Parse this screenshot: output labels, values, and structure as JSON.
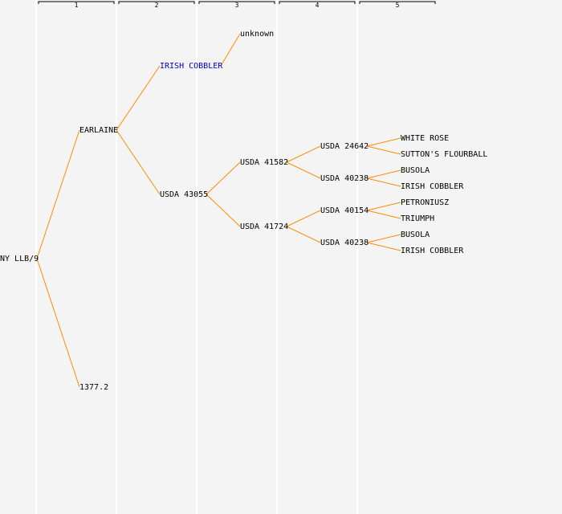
{
  "colors": {
    "background": "#f4f4f4",
    "edge": "#ff8c00",
    "text": "#000000",
    "highlight": "#0000cc"
  },
  "generations": [
    "1",
    "2",
    "3",
    "4",
    "5"
  ],
  "nodes": [
    {
      "id": "root",
      "label": "NY LLB/9",
      "gen": 0,
      "row": 0
    },
    {
      "id": "n1",
      "label": "EARLAINE",
      "gen": 1,
      "row": -8,
      "parent": "root"
    },
    {
      "id": "n2",
      "label": "1377.2",
      "gen": 1,
      "row": 8,
      "parent": "root"
    },
    {
      "id": "n3",
      "label": "IRISH COBBLER",
      "gen": 2,
      "row": -12,
      "parent": "n1",
      "highlight": true
    },
    {
      "id": "n4",
      "label": "USDA 43055",
      "gen": 2,
      "row": -4,
      "parent": "n1"
    },
    {
      "id": "n5",
      "label": "unknown",
      "gen": 3,
      "row": -14,
      "parent": "n3"
    },
    {
      "id": "n6",
      "label": "USDA 41582",
      "gen": 3,
      "row": -6,
      "parent": "n4"
    },
    {
      "id": "n7",
      "label": "USDA 41724",
      "gen": 3,
      "row": -2,
      "parent": "n4"
    },
    {
      "id": "n8",
      "label": "USDA 24642",
      "gen": 4,
      "row": -7,
      "parent": "n6"
    },
    {
      "id": "n9",
      "label": "USDA 40238",
      "gen": 4,
      "row": -5,
      "parent": "n6"
    },
    {
      "id": "n10",
      "label": "USDA 40154",
      "gen": 4,
      "row": -3,
      "parent": "n7"
    },
    {
      "id": "n11",
      "label": "USDA 40238",
      "gen": 4,
      "row": -1,
      "parent": "n7"
    },
    {
      "id": "n12",
      "label": "WHITE ROSE",
      "gen": 5,
      "row": -7.5,
      "parent": "n8"
    },
    {
      "id": "n13",
      "label": "SUTTON'S FLOURBALL",
      "gen": 5,
      "row": -6.5,
      "parent": "n8"
    },
    {
      "id": "n14",
      "label": "BUSOLA",
      "gen": 5,
      "row": -5.5,
      "parent": "n9"
    },
    {
      "id": "n15",
      "label": "IRISH COBBLER",
      "gen": 5,
      "row": -4.5,
      "parent": "n9"
    },
    {
      "id": "n16",
      "label": "PETRONIUSZ",
      "gen": 5,
      "row": -3.5,
      "parent": "n10"
    },
    {
      "id": "n17",
      "label": "TRIUMPH",
      "gen": 5,
      "row": -2.5,
      "parent": "n10"
    },
    {
      "id": "n18",
      "label": "BUSOLA",
      "gen": 5,
      "row": -1.5,
      "parent": "n11"
    },
    {
      "id": "n19",
      "label": "IRISH COBBLER",
      "gen": 5,
      "row": -0.5,
      "parent": "n11"
    }
  ]
}
